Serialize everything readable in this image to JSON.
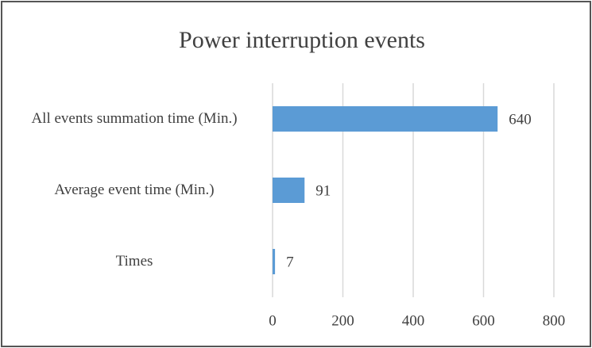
{
  "chart_data": {
    "type": "bar",
    "orientation": "horizontal",
    "title": "Power interruption events",
    "categories": [
      "All events summation time (Min.)",
      "Average event time (Min.)",
      "Times"
    ],
    "values": [
      640,
      91,
      7
    ],
    "color": "#5b9bd5",
    "xlim": [
      0,
      800
    ],
    "xticks": [
      0,
      200,
      400,
      600,
      800
    ],
    "grid": true
  }
}
